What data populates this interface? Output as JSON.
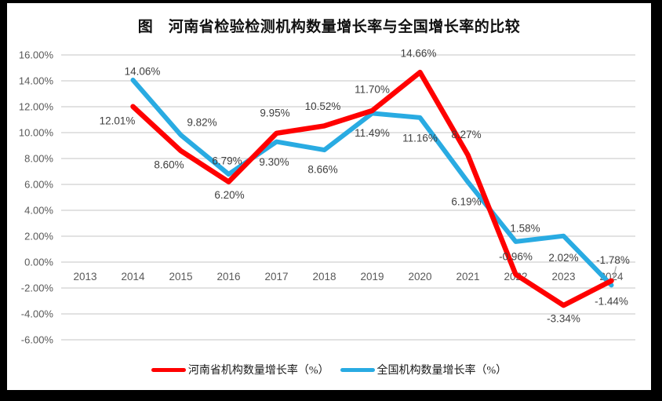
{
  "title": "图　河南省检验检测机构数量增长率与全国增长率的比较",
  "legend": {
    "items": [
      {
        "label": "河南省机构数量增长率（%）",
        "color": "#FF0000"
      },
      {
        "label": "全国机构数量增长率（%）",
        "color": "#29ABE2"
      }
    ]
  },
  "frame": {
    "border_color": "#000000",
    "background": "#FFFFFF"
  },
  "chart_data": {
    "type": "line",
    "title": "图　河南省检验检测机构数量增长率与全国增长率的比较",
    "categories": [
      "2013",
      "2014",
      "2015",
      "2016",
      "2017",
      "2018",
      "2019",
      "2020",
      "2021",
      "2022",
      "2023",
      "2024"
    ],
    "series": [
      {
        "id": "henan",
        "name": "河南省机构数量增长率（%）",
        "color": "#FF0000",
        "stroke_width": 6.5,
        "values": [
          null,
          12.01,
          8.6,
          6.2,
          9.95,
          10.52,
          11.7,
          14.66,
          8.27,
          -0.96,
          -3.34,
          -1.44
        ],
        "label_dx": [
          0,
          -20,
          -15,
          1,
          -2,
          -2,
          0,
          -2,
          -2,
          0,
          0,
          0
        ],
        "label_dy": [
          0,
          18,
          18,
          17,
          -26,
          -25,
          -27,
          -24,
          -26,
          -23,
          17,
          26
        ]
      },
      {
        "id": "national",
        "name": "全国机构数量增长率（%）",
        "color": "#29ABE2",
        "stroke_width": 6,
        "values": [
          null,
          14.06,
          9.82,
          6.79,
          9.3,
          8.66,
          11.49,
          11.16,
          6.19,
          1.58,
          2.02,
          -1.78
        ],
        "label_dx": [
          0,
          12,
          27,
          -2,
          -3,
          -2,
          0,
          0,
          -2,
          12,
          0,
          2
        ],
        "label_dy": [
          0,
          -11,
          -16,
          -17,
          26,
          25,
          25,
          26,
          25,
          -17,
          28,
          -32
        ]
      }
    ],
    "ylim": [
      -6,
      16
    ],
    "ytick_step": 2,
    "ytick_format": "0.00%",
    "grid": true,
    "legend_position": "bottom",
    "grid_color": "#D9D9D9",
    "axis_color": "#595959",
    "label_color": "#404040",
    "leader_line": {
      "series": 1,
      "index": 11,
      "color": "#A6A6A6"
    }
  }
}
